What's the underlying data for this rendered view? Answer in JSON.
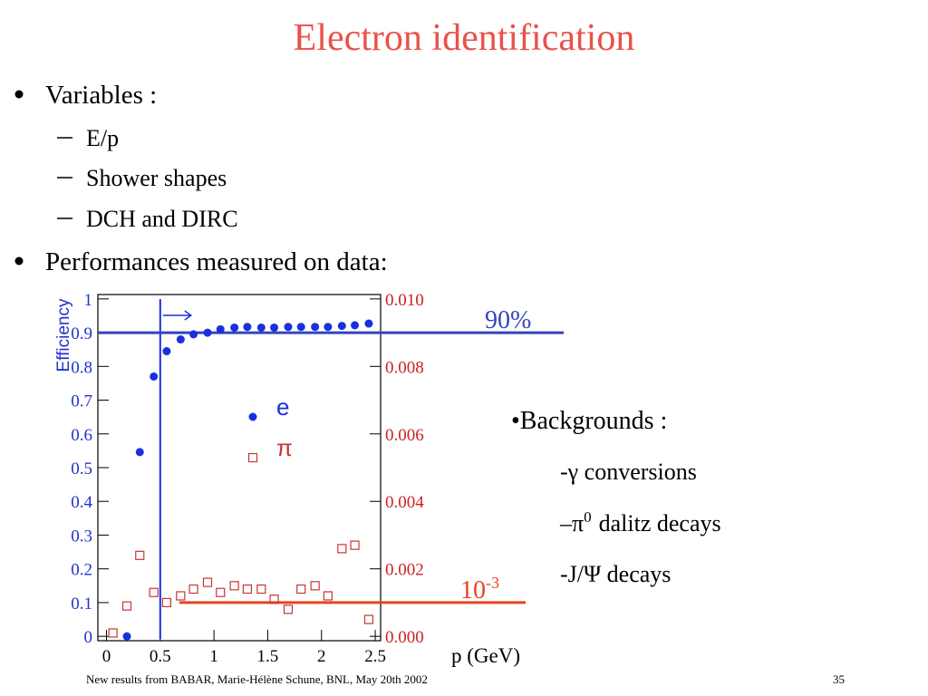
{
  "title": "Electron identification",
  "bullets": [
    {
      "text": "Variables :",
      "sub": [
        "E/p",
        "Shower shapes",
        "DCH and DIRC"
      ]
    },
    {
      "text": "Performances measured on data:"
    }
  ],
  "backgrounds": {
    "heading": "•Backgrounds :",
    "items": [
      {
        "text": "-γ conversions"
      },
      {
        "text": "–π",
        "sup": "0",
        "tail": "dalitz decays"
      },
      {
        "text": "-J/Ψ decays"
      }
    ]
  },
  "footer": {
    "text": "New results from BABAR, Marie-Hélène Schune, BNL, May 20th 2002",
    "page": "35"
  },
  "chart_data": {
    "type": "scatter",
    "y_label": "Efficiency",
    "x_label": "p (GeV)",
    "xlim": [
      -0.08,
      2.55
    ],
    "xticks": [
      0,
      0.5,
      1,
      1.5,
      2,
      2.5
    ],
    "ylim": [
      -0.013,
      1.013
    ],
    "yticks": [
      0,
      0.1,
      0.2,
      0.3,
      0.4,
      0.5,
      0.6,
      0.7,
      0.8,
      0.9,
      1
    ],
    "y2lim": [
      -0.00013,
      0.01013
    ],
    "y2ticks": [
      {
        "value": 0,
        "label": "0.000"
      },
      {
        "value": 0.002,
        "label": "0.002"
      },
      {
        "value": 0.004,
        "label": "0.004"
      },
      {
        "value": 0.006,
        "label": "0.006"
      },
      {
        "value": 0.008,
        "label": "0.008"
      },
      {
        "value": 0.01,
        "label": "0.010"
      }
    ],
    "series": [
      {
        "name": "e",
        "color": "#1a2fe0",
        "marker": "circle",
        "x": [
          0.19,
          0.31,
          0.44,
          0.56,
          0.69,
          0.81,
          0.94,
          1.06,
          1.19,
          1.31,
          1.44,
          1.56,
          1.69,
          1.81,
          1.94,
          2.06,
          2.19,
          2.31,
          2.44
        ],
        "values": [
          0,
          0.546,
          0.77,
          0.845,
          0.88,
          0.895,
          0.9,
          0.91,
          0.915,
          0.917,
          0.915,
          0.915,
          0.917,
          0.917,
          0.917,
          0.917,
          0.92,
          0.922,
          0.927
        ]
      },
      {
        "name": "π",
        "color": "#cc3333",
        "marker": "square",
        "axis": "y2",
        "x": [
          0.06,
          0.19,
          0.31,
          0.44,
          0.56,
          0.69,
          0.81,
          0.94,
          1.06,
          1.19,
          1.31,
          1.44,
          1.56,
          1.69,
          1.81,
          1.94,
          2.06,
          2.19,
          2.31,
          2.44
        ],
        "values": [
          0.0001,
          0.0009,
          0.0024,
          0.0013,
          0.001,
          0.0012,
          0.0014,
          0.0016,
          0.0013,
          0.0015,
          0.0014,
          0.0014,
          0.0011,
          0.0008,
          0.0014,
          0.0015,
          0.0012,
          0.0026,
          0.0027,
          0.0005
        ]
      }
    ],
    "vline": 0.5,
    "reference_lines": [
      {
        "value": 0.9,
        "axis": "y",
        "color": "#3344bb",
        "label": "90%"
      },
      {
        "value": 0.001,
        "axis": "y2",
        "color": "#e8441c",
        "label": "10",
        "label_sup": "-3"
      }
    ]
  }
}
